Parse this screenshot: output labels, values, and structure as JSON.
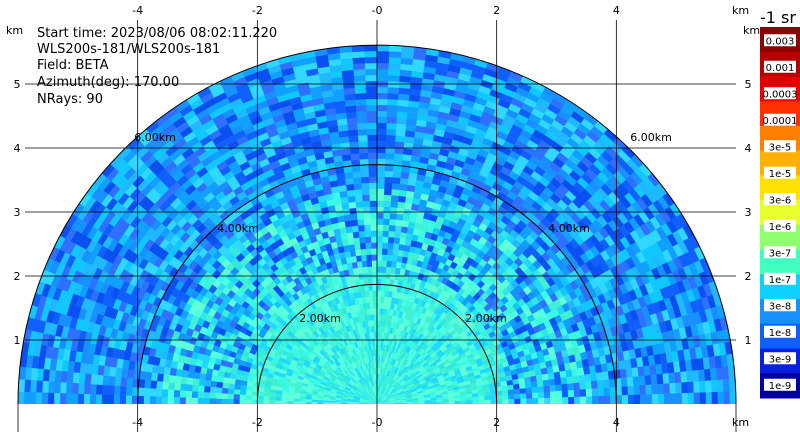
{
  "info": {
    "start_time": "Start time: 2023/08/06 08:02:11.220",
    "instrument": "WLS200s-181/WLS200s-181",
    "field": "Field: BETA",
    "azimuth": "Azimuth(deg): 170.00",
    "nrays": "NRays: 90"
  },
  "units_label": "-1 sr",
  "axis_unit": "km",
  "x_ticks": [
    "-4",
    "-2",
    "-0",
    "2",
    "4"
  ],
  "y_ticks": [
    "1",
    "2",
    "3",
    "4",
    "5"
  ],
  "ring_labels": [
    "2.00km",
    "4.00km",
    "6.00km"
  ],
  "colorbar": {
    "labels": [
      "0.003",
      "0.001",
      "0.0003",
      "0.0001",
      "3e-5",
      "1e-5",
      "3e-6",
      "1e-6",
      "3e-7",
      "1e-7",
      "3e-8",
      "1e-8",
      "3e-9",
      "1e-9"
    ],
    "colors": [
      "#8b0000",
      "#b30000",
      "#e00000",
      "#ff3000",
      "#ff8000",
      "#ffb000",
      "#ffe000",
      "#e8ff30",
      "#90ff70",
      "#40ffc0",
      "#10d0ff",
      "#1890ff",
      "#1060ff",
      "#0a20e0",
      "#0000a0"
    ]
  },
  "chart_data": {
    "type": "heatmap",
    "title": "",
    "xlabel": "km",
    "ylabel": "km",
    "xlim": [
      -6,
      6
    ],
    "ylim": [
      0,
      6
    ],
    "range_rings_km": [
      2,
      4,
      6
    ],
    "field": "BETA",
    "azimuth_deg": 170.0,
    "nrays": 90
  }
}
